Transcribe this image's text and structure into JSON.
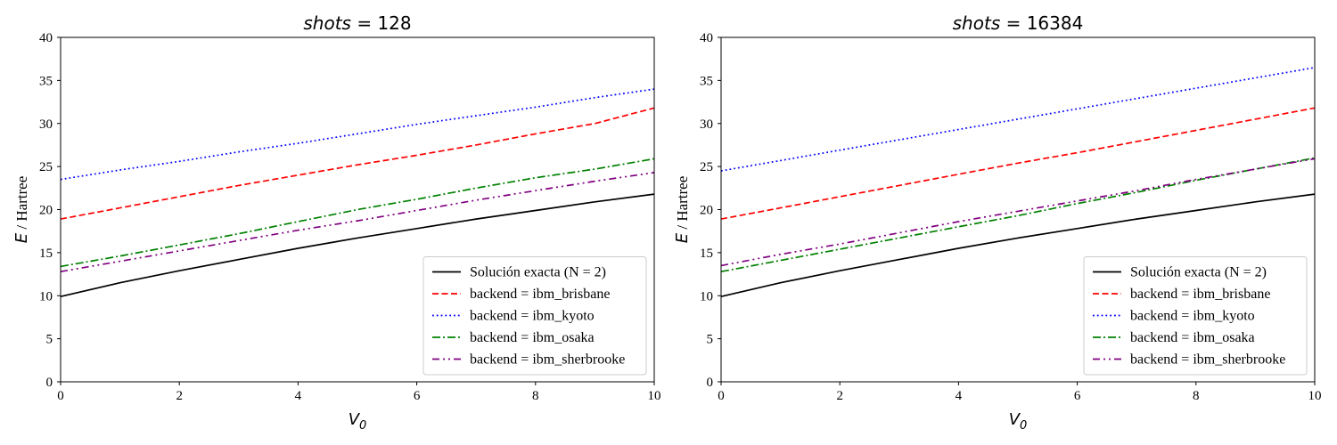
{
  "chart_data": [
    {
      "type": "line",
      "title_var": "shots",
      "title_value": "128",
      "xlabel": "V",
      "xlabel_sub": "0",
      "ylabel_var": "E",
      "ylabel_unit": "/ Hartree",
      "xlim": [
        0,
        10
      ],
      "ylim": [
        0,
        40
      ],
      "xticks": [
        0,
        2,
        4,
        6,
        8,
        10
      ],
      "yticks": [
        0,
        5,
        10,
        15,
        20,
        25,
        30,
        35,
        40
      ],
      "legend_position": "lower-right",
      "x": [
        0,
        1,
        2,
        3,
        4,
        5,
        6,
        7,
        8,
        9,
        10
      ],
      "series": [
        {
          "name": "Solución exacta (N = 2)",
          "color": "#000000",
          "dash": "solid",
          "values": [
            9.9,
            11.5,
            12.9,
            14.2,
            15.5,
            16.7,
            17.8,
            18.9,
            19.9,
            20.9,
            21.8
          ]
        },
        {
          "name": "backend = ibm_brisbane",
          "color": "#ff0000",
          "dash": "dashed",
          "values": [
            18.9,
            20.2,
            21.5,
            22.8,
            24.0,
            25.2,
            26.3,
            27.5,
            28.8,
            30.0,
            31.8
          ]
        },
        {
          "name": "backend = ibm_kyoto",
          "color": "#0000ff",
          "dash": "dotted",
          "values": [
            23.5,
            24.6,
            25.6,
            26.7,
            27.7,
            28.8,
            29.9,
            30.9,
            31.9,
            33.0,
            34.0
          ]
        },
        {
          "name": "backend = ibm_osaka",
          "color": "#008000",
          "dash": "dashdot",
          "values": [
            13.4,
            14.6,
            15.9,
            17.2,
            18.6,
            20.0,
            21.2,
            22.5,
            23.7,
            24.7,
            25.9
          ]
        },
        {
          "name": "backend = ibm_sherbrooke",
          "color": "#800080",
          "dash": "dashdotdot",
          "values": [
            12.8,
            14.0,
            15.2,
            16.4,
            17.6,
            18.7,
            19.9,
            21.1,
            22.2,
            23.3,
            24.3
          ]
        }
      ]
    },
    {
      "type": "line",
      "title_var": "shots",
      "title_value": "16384",
      "xlabel": "V",
      "xlabel_sub": "0",
      "ylabel_var": "E",
      "ylabel_unit": "/ Hartree",
      "xlim": [
        0,
        10
      ],
      "ylim": [
        0,
        40
      ],
      "xticks": [
        0,
        2,
        4,
        6,
        8,
        10
      ],
      "yticks": [
        0,
        5,
        10,
        15,
        20,
        25,
        30,
        35,
        40
      ],
      "legend_position": "lower-right",
      "x": [
        0,
        1,
        2,
        3,
        4,
        5,
        6,
        7,
        8,
        9,
        10
      ],
      "series": [
        {
          "name": "Solución exacta (N = 2)",
          "color": "#000000",
          "dash": "solid",
          "values": [
            9.9,
            11.5,
            12.9,
            14.2,
            15.5,
            16.7,
            17.8,
            18.9,
            19.9,
            20.9,
            21.8
          ]
        },
        {
          "name": "backend = ibm_brisbane",
          "color": "#ff0000",
          "dash": "dashed",
          "values": [
            18.9,
            20.2,
            21.5,
            22.8,
            24.1,
            25.4,
            26.6,
            27.9,
            29.2,
            30.5,
            31.8
          ]
        },
        {
          "name": "backend = ibm_kyoto",
          "color": "#0000ff",
          "dash": "dotted",
          "values": [
            24.5,
            25.7,
            26.9,
            28.1,
            29.3,
            30.5,
            31.7,
            32.9,
            34.1,
            35.3,
            36.5
          ]
        },
        {
          "name": "backend = ibm_osaka",
          "color": "#008000",
          "dash": "dashdot",
          "values": [
            12.8,
            14.1,
            15.4,
            16.7,
            18.0,
            19.3,
            20.7,
            22.0,
            23.4,
            24.7,
            26.0
          ]
        },
        {
          "name": "backend = ibm_sherbrooke",
          "color": "#800080",
          "dash": "dashdotdot",
          "values": [
            13.5,
            14.8,
            16.0,
            17.3,
            18.6,
            19.8,
            21.0,
            22.2,
            23.5,
            24.7,
            25.9
          ]
        }
      ]
    }
  ]
}
